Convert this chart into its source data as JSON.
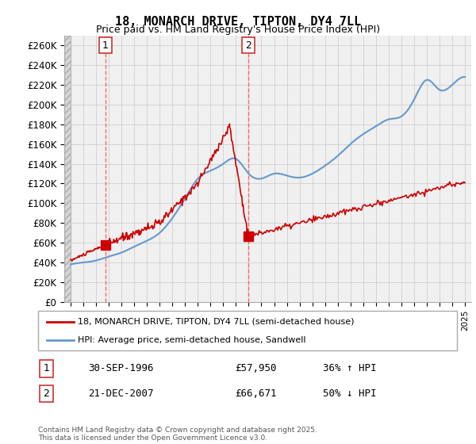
{
  "title": "18, MONARCH DRIVE, TIPTON, DY4 7LL",
  "subtitle": "Price paid vs. HM Land Registry's House Price Index (HPI)",
  "ylabel_ticks": [
    "£0",
    "£20K",
    "£40K",
    "£60K",
    "£80K",
    "£100K",
    "£120K",
    "£140K",
    "£160K",
    "£180K",
    "£200K",
    "£220K",
    "£240K",
    "£260K"
  ],
  "ylim": [
    0,
    270000
  ],
  "xlim_start": 1993.5,
  "xlim_end": 2025.5,
  "legend_line1": "18, MONARCH DRIVE, TIPTON, DY4 7LL (semi-detached house)",
  "legend_line2": "HPI: Average price, semi-detached house, Sandwell",
  "annotation1_label": "1",
  "annotation1_date": "30-SEP-1996",
  "annotation1_price": "£57,950",
  "annotation1_hpi": "36% ↑ HPI",
  "annotation2_label": "2",
  "annotation2_date": "21-DEC-2007",
  "annotation2_price": "£66,671",
  "annotation2_hpi": "50% ↓ HPI",
  "footer": "Contains HM Land Registry data © Crown copyright and database right 2025.\nThis data is licensed under the Open Government Licence v3.0.",
  "purchase1_x": 1996.75,
  "purchase1_y": 57950,
  "purchase2_x": 2007.97,
  "purchase2_y": 66671,
  "line_color_red": "#cc0000",
  "line_color_blue": "#6699cc",
  "background_color": "#ffffff",
  "grid_color": "#cccccc"
}
